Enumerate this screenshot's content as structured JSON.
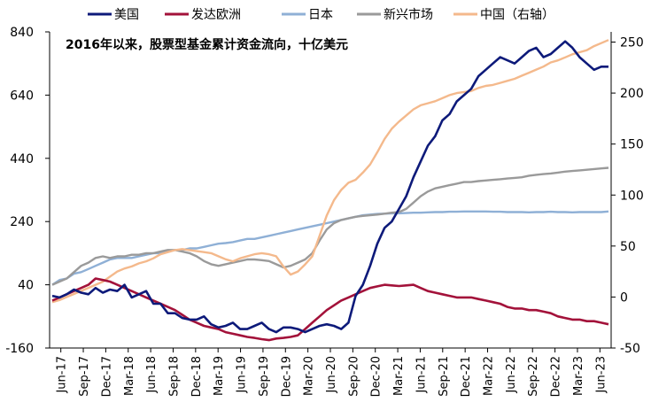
{
  "chart_data": {
    "type": "line",
    "title": "2016年以来，股票型基金累计资金流向，十亿美元",
    "left_axis": {
      "ylim": [
        -160,
        840
      ],
      "ticks": [
        -160,
        40,
        240,
        440,
        640,
        840
      ]
    },
    "right_axis": {
      "ylim": [
        -50,
        260
      ],
      "ticks": [
        -50,
        0,
        50,
        100,
        150,
        200,
        250
      ]
    },
    "x_tick_labels": [
      "Jun-17",
      "Sep-17",
      "Dec-17",
      "Mar-18",
      "Jun-18",
      "Sep-18",
      "Dec-18",
      "Mar-19",
      "Jun-19",
      "Sep-19",
      "Dec-19",
      "Mar-20",
      "Jun-20",
      "Sep-20",
      "Dec-20",
      "Mar-21",
      "Jun-21",
      "Sep-21",
      "Dec-21",
      "Mar-22",
      "Jun-22",
      "Sep-22",
      "Dec-22",
      "Mar-23",
      "Jun-23"
    ],
    "legend_position": "top",
    "series": [
      {
        "name": "美国",
        "axis": "left",
        "color": "#0d1a7a",
        "values": [
          5,
          0,
          10,
          25,
          15,
          10,
          30,
          15,
          25,
          20,
          40,
          0,
          10,
          20,
          -20,
          -20,
          -50,
          -50,
          -65,
          -70,
          -70,
          -60,
          -85,
          -95,
          -90,
          -80,
          -100,
          -100,
          -90,
          -80,
          -100,
          -110,
          -95,
          -95,
          -100,
          -110,
          -100,
          -90,
          -85,
          -90,
          -100,
          -80,
          5,
          40,
          100,
          170,
          220,
          240,
          280,
          320,
          380,
          430,
          480,
          510,
          560,
          580,
          620,
          640,
          660,
          700,
          720,
          740,
          760,
          750,
          740,
          760,
          780,
          790,
          760,
          770,
          790,
          810,
          790,
          760,
          740,
          720,
          730,
          730
        ]
      },
      {
        "name": "发达欧洲",
        "axis": "left",
        "color": "#a3123a",
        "values": [
          -10,
          0,
          10,
          20,
          30,
          40,
          60,
          55,
          50,
          40,
          30,
          20,
          10,
          0,
          -10,
          -20,
          -30,
          -40,
          -55,
          -70,
          -80,
          -90,
          -95,
          -100,
          -110,
          -115,
          -120,
          -125,
          -128,
          -132,
          -135,
          -130,
          -128,
          -125,
          -120,
          -100,
          -80,
          -60,
          -40,
          -25,
          -10,
          0,
          10,
          20,
          30,
          35,
          40,
          38,
          36,
          38,
          40,
          30,
          20,
          15,
          10,
          5,
          0,
          0,
          0,
          -5,
          -10,
          -15,
          -20,
          -30,
          -35,
          -35,
          -40,
          -40,
          -45,
          -50,
          -60,
          -65,
          -70,
          -70,
          -75,
          -75,
          -80,
          -85
        ]
      },
      {
        "name": "日本",
        "axis": "left",
        "color": "#8fb0d6",
        "values": [
          40,
          55,
          60,
          75,
          80,
          90,
          100,
          110,
          120,
          125,
          125,
          125,
          130,
          135,
          140,
          140,
          145,
          150,
          150,
          155,
          155,
          160,
          165,
          170,
          172,
          175,
          180,
          185,
          185,
          190,
          195,
          200,
          205,
          210,
          215,
          220,
          225,
          230,
          235,
          240,
          245,
          250,
          255,
          260,
          262,
          264,
          265,
          266,
          266,
          267,
          268,
          268,
          269,
          270,
          270,
          271,
          271,
          272,
          272,
          272,
          272,
          271,
          271,
          270,
          270,
          270,
          269,
          270,
          270,
          271,
          270,
          270,
          269,
          270,
          270,
          270,
          270,
          272
        ]
      },
      {
        "name": "新兴市场",
        "axis": "left",
        "color": "#9a9a9a",
        "values": [
          40,
          50,
          60,
          80,
          100,
          110,
          125,
          130,
          125,
          130,
          130,
          135,
          135,
          140,
          140,
          145,
          150,
          150,
          145,
          140,
          130,
          115,
          105,
          100,
          105,
          110,
          115,
          120,
          120,
          118,
          115,
          105,
          95,
          100,
          110,
          120,
          140,
          180,
          215,
          235,
          245,
          250,
          255,
          258,
          260,
          262,
          265,
          268,
          270,
          280,
          300,
          320,
          335,
          345,
          350,
          355,
          360,
          365,
          365,
          368,
          370,
          372,
          374,
          376,
          378,
          380,
          385,
          388,
          390,
          392,
          395,
          398,
          400,
          402,
          404,
          406,
          408,
          410
        ]
      },
      {
        "name": "中国（右轴）",
        "axis": "right",
        "color": "#f4b98c",
        "values": [
          -5,
          -3,
          0,
          3,
          6,
          9,
          12,
          15,
          20,
          25,
          28,
          30,
          33,
          35,
          38,
          42,
          44,
          46,
          47,
          46,
          45,
          44,
          43,
          40,
          37,
          35,
          38,
          40,
          42,
          43,
          42,
          40,
          30,
          22,
          25,
          32,
          40,
          60,
          80,
          95,
          105,
          112,
          115,
          122,
          130,
          142,
          155,
          165,
          172,
          178,
          184,
          188,
          190,
          192,
          195,
          198,
          200,
          201,
          202,
          205,
          207,
          208,
          210,
          212,
          214,
          217,
          220,
          223,
          226,
          230,
          232,
          235,
          238,
          240,
          242,
          246,
          249,
          252
        ]
      }
    ]
  }
}
